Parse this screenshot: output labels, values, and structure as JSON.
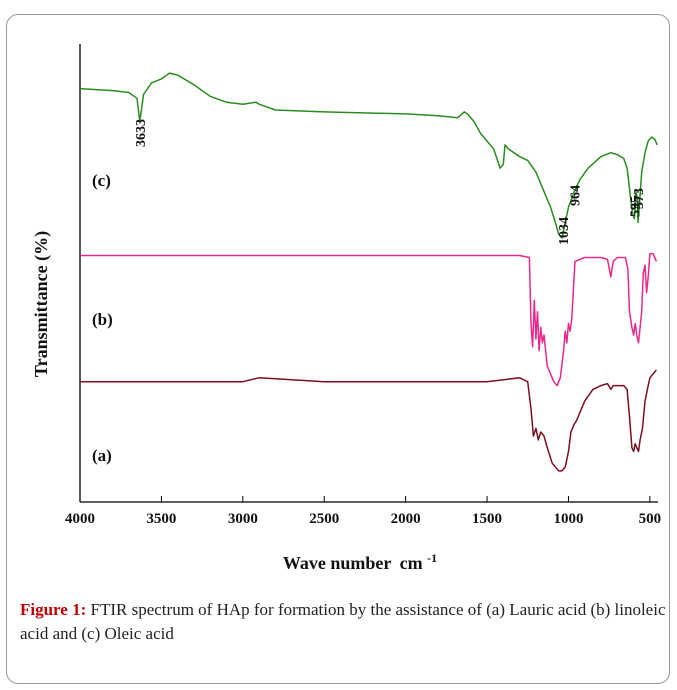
{
  "chart_data": {
    "type": "line",
    "xlabel": "Wave number",
    "xlabel_unit": "cm",
    "xlabel_sup": "-1",
    "ylabel": "Transmittance (%)",
    "xlim": [
      4000,
      450
    ],
    "reversed_x": true,
    "x_ticks": [
      4000,
      3500,
      3000,
      2500,
      2000,
      1500,
      1000,
      500
    ],
    "grid": false,
    "legend": "none",
    "series": [
      {
        "label": "(a)",
        "color": "#7a0f1f",
        "points": [
          [
            4000,
            0.19
          ],
          [
            3500,
            0.19
          ],
          [
            3000,
            0.19
          ],
          [
            2900,
            0.2
          ],
          [
            2500,
            0.19
          ],
          [
            2000,
            0.19
          ],
          [
            1500,
            0.19
          ],
          [
            1300,
            0.2
          ],
          [
            1250,
            0.19
          ],
          [
            1230,
            0.12
          ],
          [
            1215,
            0.05
          ],
          [
            1200,
            0.07
          ],
          [
            1185,
            0.04
          ],
          [
            1170,
            0.06
          ],
          [
            1150,
            0.05
          ],
          [
            1130,
            0.02
          ],
          [
            1100,
            -0.02
          ],
          [
            1060,
            -0.04
          ],
          [
            1040,
            -0.04
          ],
          [
            1020,
            -0.03
          ],
          [
            1000,
            0.01
          ],
          [
            985,
            0.06
          ],
          [
            965,
            0.08
          ],
          [
            950,
            0.09
          ],
          [
            900,
            0.14
          ],
          [
            850,
            0.17
          ],
          [
            800,
            0.18
          ],
          [
            760,
            0.185
          ],
          [
            740,
            0.17
          ],
          [
            725,
            0.18
          ],
          [
            700,
            0.18
          ],
          [
            660,
            0.18
          ],
          [
            640,
            0.17
          ],
          [
            625,
            0.1
          ],
          [
            610,
            0.02
          ],
          [
            600,
            0.01
          ],
          [
            590,
            0.03
          ],
          [
            580,
            0.02
          ],
          [
            570,
            0.01
          ],
          [
            560,
            0.04
          ],
          [
            545,
            0.07
          ],
          [
            530,
            0.14
          ],
          [
            515,
            0.17
          ],
          [
            500,
            0.2
          ],
          [
            480,
            0.21
          ],
          [
            460,
            0.22
          ]
        ]
      },
      {
        "label": "(b)",
        "color": "#e8288a",
        "points": [
          [
            4000,
            0.515
          ],
          [
            3500,
            0.515
          ],
          [
            3000,
            0.515
          ],
          [
            2500,
            0.515
          ],
          [
            2000,
            0.515
          ],
          [
            1500,
            0.515
          ],
          [
            1300,
            0.515
          ],
          [
            1240,
            0.51
          ],
          [
            1230,
            0.34
          ],
          [
            1220,
            0.28
          ],
          [
            1210,
            0.4
          ],
          [
            1200,
            0.3
          ],
          [
            1190,
            0.37
          ],
          [
            1180,
            0.27
          ],
          [
            1170,
            0.33
          ],
          [
            1160,
            0.29
          ],
          [
            1150,
            0.31
          ],
          [
            1130,
            0.23
          ],
          [
            1110,
            0.21
          ],
          [
            1090,
            0.19
          ],
          [
            1070,
            0.18
          ],
          [
            1050,
            0.2
          ],
          [
            1030,
            0.27
          ],
          [
            1020,
            0.32
          ],
          [
            1010,
            0.29
          ],
          [
            1000,
            0.34
          ],
          [
            990,
            0.32
          ],
          [
            980,
            0.35
          ],
          [
            960,
            0.5
          ],
          [
            900,
            0.51
          ],
          [
            800,
            0.51
          ],
          [
            760,
            0.505
          ],
          [
            740,
            0.46
          ],
          [
            725,
            0.5
          ],
          [
            700,
            0.51
          ],
          [
            650,
            0.51
          ],
          [
            635,
            0.48
          ],
          [
            625,
            0.37
          ],
          [
            610,
            0.33
          ],
          [
            600,
            0.31
          ],
          [
            590,
            0.34
          ],
          [
            580,
            0.31
          ],
          [
            570,
            0.29
          ],
          [
            560,
            0.33
          ],
          [
            550,
            0.37
          ],
          [
            540,
            0.47
          ],
          [
            530,
            0.49
          ],
          [
            520,
            0.42
          ],
          [
            510,
            0.46
          ],
          [
            500,
            0.52
          ],
          [
            480,
            0.52
          ],
          [
            460,
            0.5
          ]
        ]
      },
      {
        "label": "(c)",
        "color": "#2a8c1f",
        "points": [
          [
            4000,
            0.945
          ],
          [
            3800,
            0.94
          ],
          [
            3700,
            0.935
          ],
          [
            3650,
            0.92
          ],
          [
            3633,
            0.86
          ],
          [
            3610,
            0.93
          ],
          [
            3560,
            0.96
          ],
          [
            3500,
            0.97
          ],
          [
            3450,
            0.985
          ],
          [
            3400,
            0.98
          ],
          [
            3300,
            0.955
          ],
          [
            3200,
            0.925
          ],
          [
            3100,
            0.91
          ],
          [
            3000,
            0.905
          ],
          [
            2920,
            0.91
          ],
          [
            2900,
            0.905
          ],
          [
            2800,
            0.89
          ],
          [
            2500,
            0.885
          ],
          [
            2000,
            0.88
          ],
          [
            1800,
            0.875
          ],
          [
            1680,
            0.87
          ],
          [
            1640,
            0.885
          ],
          [
            1620,
            0.88
          ],
          [
            1580,
            0.86
          ],
          [
            1540,
            0.83
          ],
          [
            1500,
            0.81
          ],
          [
            1460,
            0.79
          ],
          [
            1420,
            0.74
          ],
          [
            1400,
            0.75
          ],
          [
            1390,
            0.8
          ],
          [
            1370,
            0.79
          ],
          [
            1300,
            0.77
          ],
          [
            1250,
            0.76
          ],
          [
            1200,
            0.73
          ],
          [
            1150,
            0.68
          ],
          [
            1110,
            0.64
          ],
          [
            1080,
            0.6
          ],
          [
            1060,
            0.57
          ],
          [
            1040,
            0.56
          ],
          [
            1030,
            0.58
          ],
          [
            1000,
            0.64
          ],
          [
            964,
            0.68
          ],
          [
            930,
            0.71
          ],
          [
            880,
            0.74
          ],
          [
            800,
            0.77
          ],
          [
            740,
            0.78
          ],
          [
            700,
            0.775
          ],
          [
            660,
            0.765
          ],
          [
            640,
            0.74
          ],
          [
            620,
            0.67
          ],
          [
            605,
            0.62
          ],
          [
            595,
            0.61
          ],
          [
            585,
            0.68
          ],
          [
            578,
            0.66
          ],
          [
            573,
            0.6
          ],
          [
            565,
            0.64
          ],
          [
            550,
            0.73
          ],
          [
            530,
            0.78
          ],
          [
            510,
            0.81
          ],
          [
            490,
            0.82
          ],
          [
            470,
            0.815
          ],
          [
            455,
            0.8
          ]
        ]
      }
    ],
    "annotations": [
      "3633",
      "1034",
      "964",
      "595",
      "573"
    ]
  },
  "caption": {
    "label": "Figure 1:",
    "text": " FTIR spectrum of HAp for formation by the assistance of (a) Lauric acid (b) linoleic acid and (c) Oleic acid"
  }
}
